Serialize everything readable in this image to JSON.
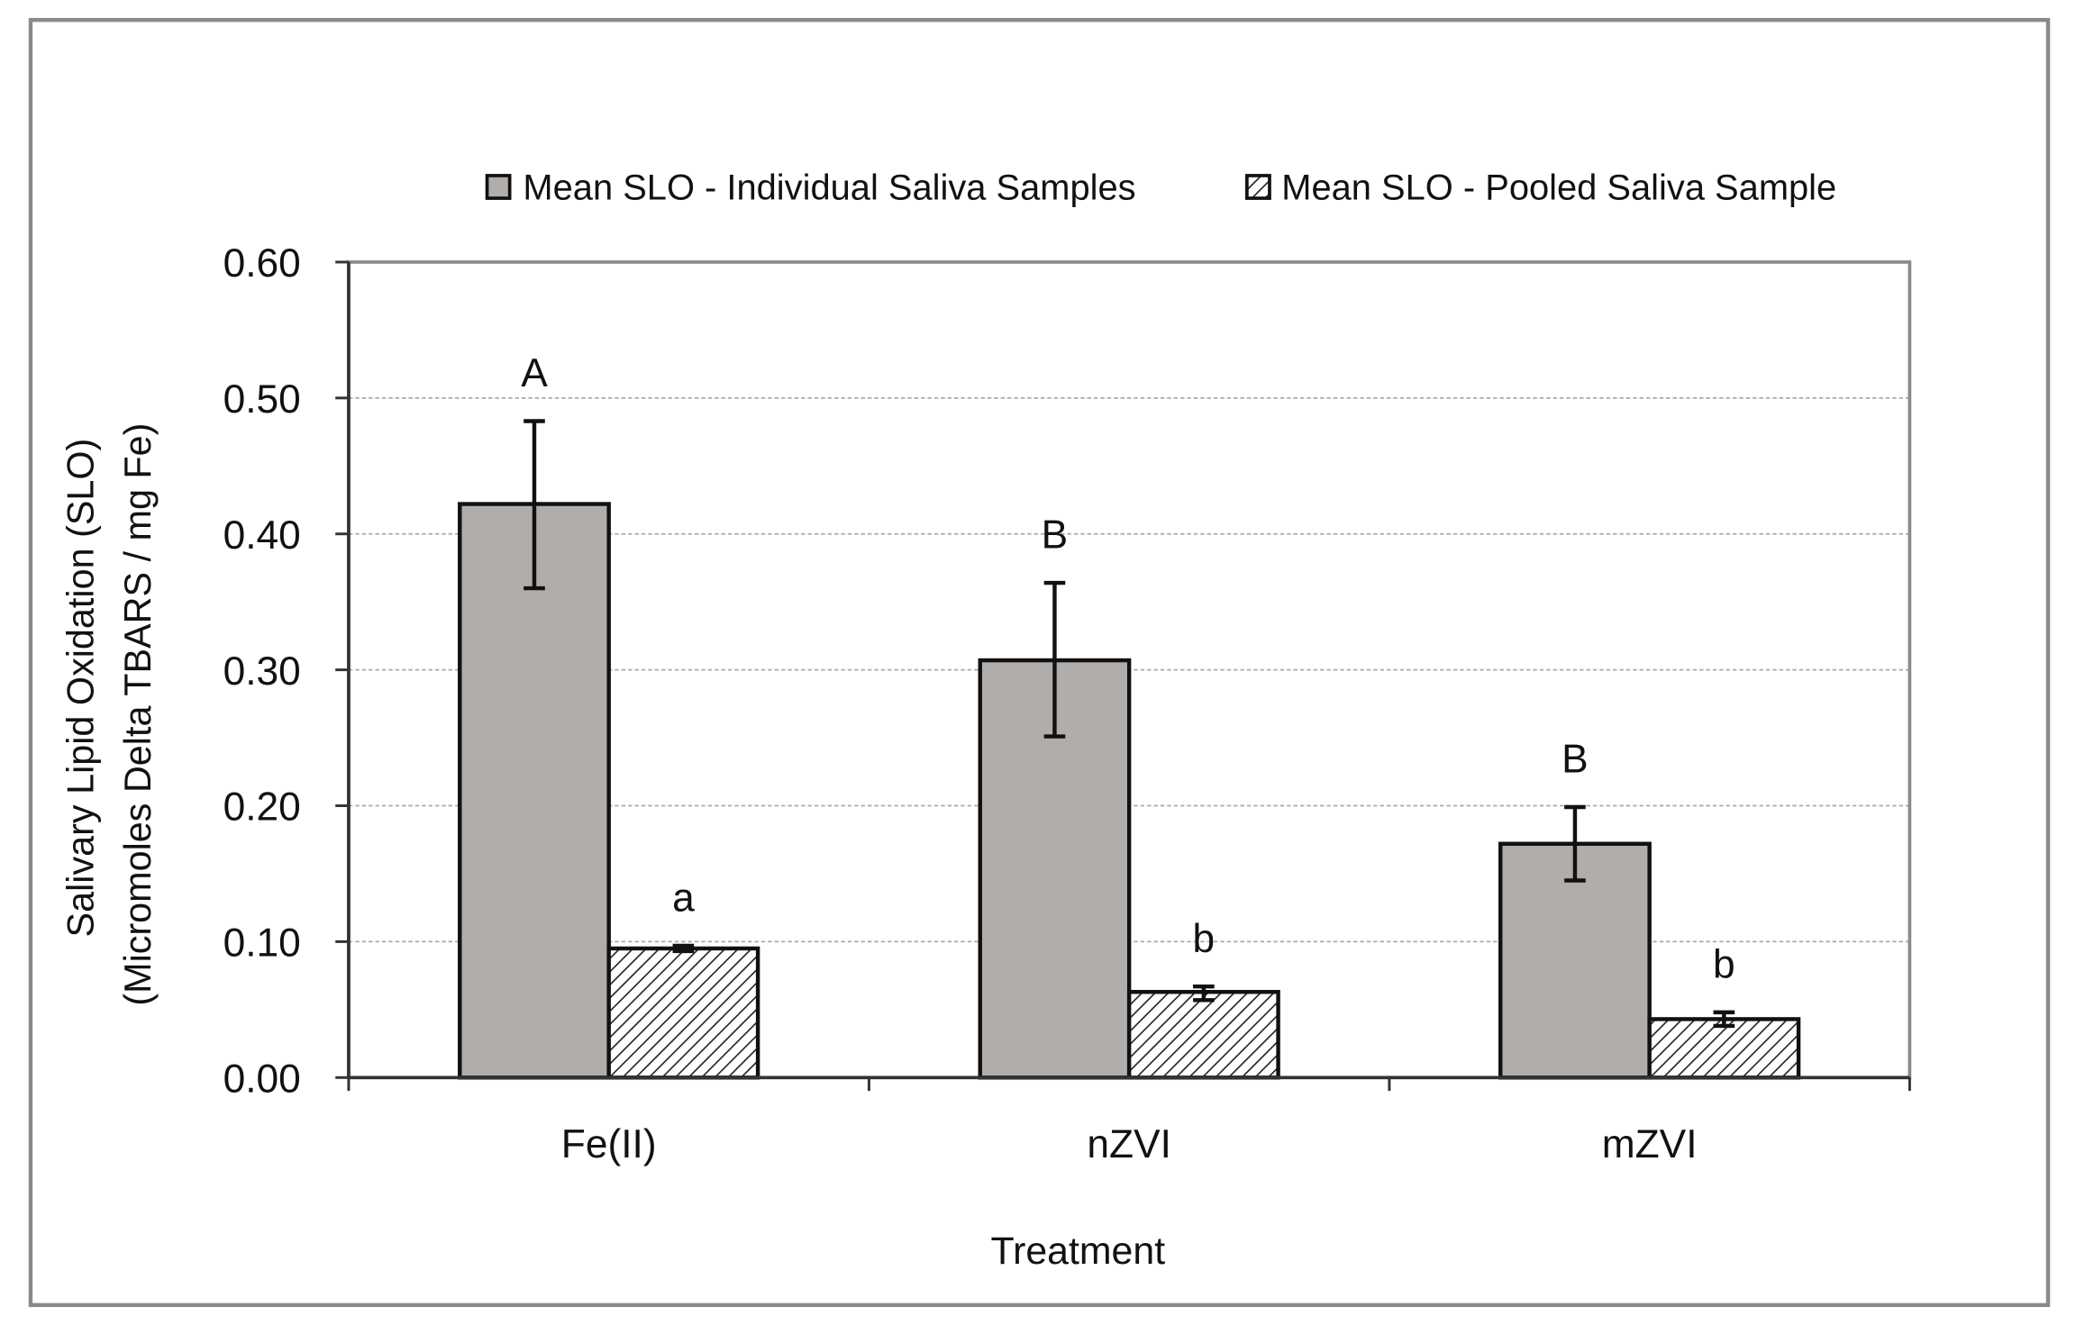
{
  "chart_data": {
    "type": "bar",
    "title": "",
    "xlabel": "Treatment",
    "ylabel": [
      "Salivary Lipid Oxidation (SLO)",
      "(Micromoles  Delta TBARS / mg Fe)"
    ],
    "ylim": [
      0,
      0.6
    ],
    "yticks": [
      "0.00",
      "0.10",
      "0.20",
      "0.30",
      "0.40",
      "0.50",
      "0.60"
    ],
    "grid": true,
    "legend_position": "top",
    "categories": [
      "Fe(II)",
      "nZVI",
      "mZVI"
    ],
    "series": [
      {
        "name": "Mean SLO - Individual Saliva Samples",
        "values": [
          0.422,
          0.307,
          0.172
        ],
        "error_low": [
          0.36,
          0.251,
          0.145
        ],
        "error_high": [
          0.483,
          0.364,
          0.199
        ],
        "letters": [
          "A",
          "B",
          "B"
        ],
        "color": "#b0adab",
        "pattern": "solid"
      },
      {
        "name": "Mean SLO - Pooled Saliva Sample",
        "values": [
          0.095,
          0.063,
          0.043
        ],
        "error_low": [
          0.093,
          0.057,
          0.038
        ],
        "error_high": [
          0.097,
          0.067,
          0.048
        ],
        "letters": [
          "a",
          "b",
          "b"
        ],
        "color": "#ffffff",
        "pattern": "diagonal-hatch"
      }
    ]
  }
}
